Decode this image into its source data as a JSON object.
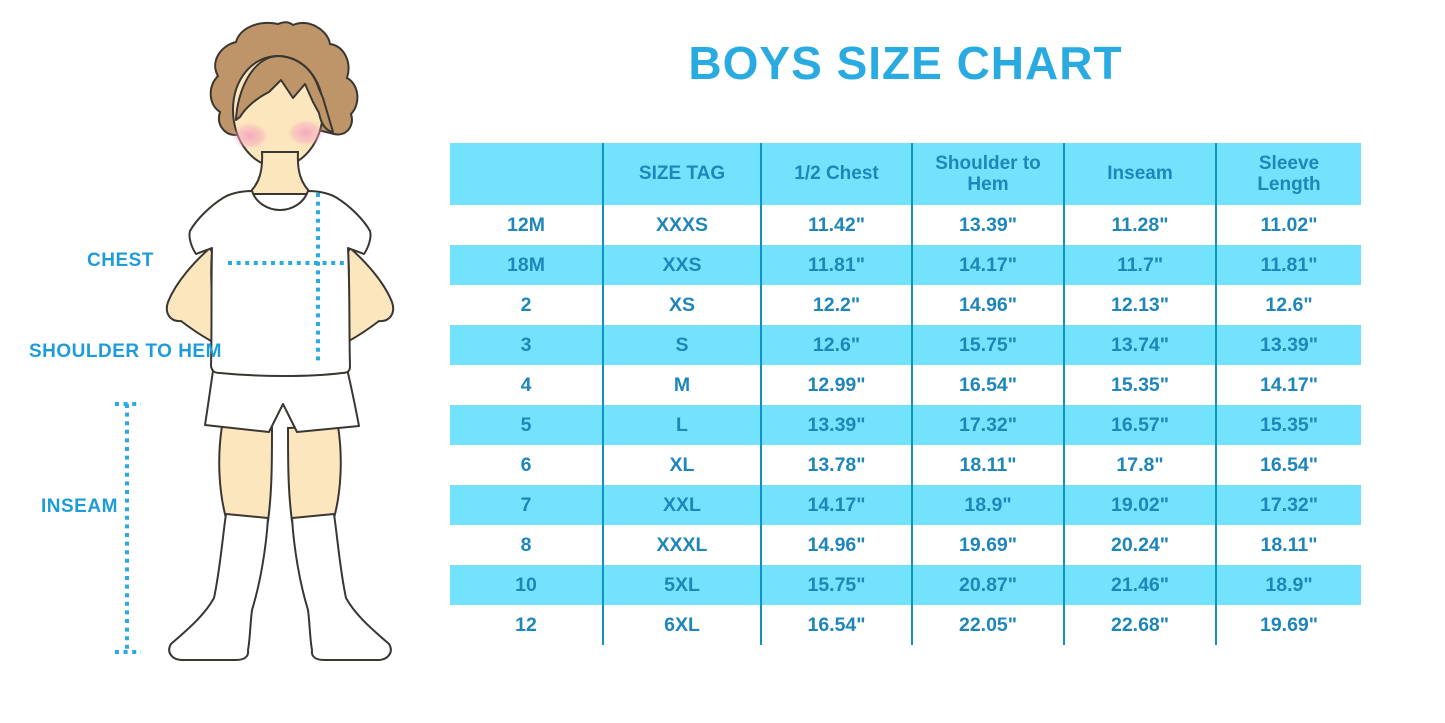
{
  "title": "BOYS SIZE CHART",
  "figure": {
    "description": "cartoon-boy-in-white-tshirt-shorts-and-knee-socks",
    "labels": {
      "chest": "CHEST",
      "shoulder_to_hem": "SHOULDER TO HEM",
      "inseam": "INSEAM"
    }
  },
  "colors": {
    "accent_blue": "#29ABE2",
    "band_cyan": "#73E3FD",
    "divider_blue": "#1192C7",
    "table_text": "#1E86B8",
    "skin": "#FCE6BE",
    "hair": "#BD9568",
    "blush": "#F4A9BE"
  },
  "chart_data": {
    "type": "table",
    "title": "BOYS SIZE CHART",
    "columns": [
      "",
      "SIZE TAG",
      "1/2 Chest",
      "Shoulder to Hem",
      "Inseam",
      "Sleeve Length"
    ],
    "rows": [
      [
        "12M",
        "XXXS",
        "11.42\"",
        "13.39\"",
        "11.28\"",
        "11.02\""
      ],
      [
        "18M",
        "XXS",
        "11.81\"",
        "14.17\"",
        "11.7\"",
        "11.81\""
      ],
      [
        "2",
        "XS",
        "12.2\"",
        "14.96\"",
        "12.13\"",
        "12.6\""
      ],
      [
        "3",
        "S",
        "12.6\"",
        "15.75\"",
        "13.74\"",
        "13.39\""
      ],
      [
        "4",
        "M",
        "12.99\"",
        "16.54\"",
        "15.35\"",
        "14.17\""
      ],
      [
        "5",
        "L",
        "13.39\"",
        "17.32\"",
        "16.57\"",
        "15.35\""
      ],
      [
        "6",
        "XL",
        "13.78\"",
        "18.11\"",
        "17.8\"",
        "16.54\""
      ],
      [
        "7",
        "XXL",
        "14.17\"",
        "18.9\"",
        "19.02\"",
        "17.32\""
      ],
      [
        "8",
        "XXXL",
        "14.96\"",
        "19.69\"",
        "20.24\"",
        "18.11\""
      ],
      [
        "10",
        "5XL",
        "15.75\"",
        "20.87\"",
        "21.46\"",
        "18.9\""
      ],
      [
        "12",
        "6XL",
        "16.54\"",
        "22.05\"",
        "22.68\"",
        "19.69\""
      ]
    ],
    "banding": "header cyan; data rows alternate white/cyan starting white",
    "grid": "vertical dividers only"
  }
}
